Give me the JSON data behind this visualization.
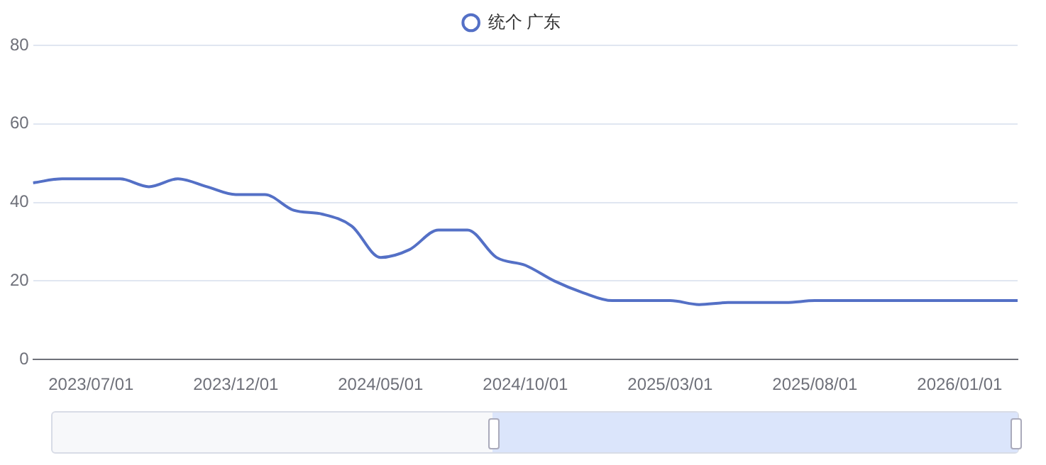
{
  "chart_data": {
    "type": "line",
    "categories": [
      null,
      null,
      "2023/07/01",
      null,
      null,
      null,
      null,
      "2023/12/01",
      null,
      null,
      null,
      null,
      "2024/05/01",
      null,
      null,
      null,
      null,
      "2024/10/01",
      null,
      null,
      null,
      null,
      "2025/03/01",
      null,
      null,
      null,
      null,
      "2025/08/01",
      null,
      null,
      null,
      null,
      "2026/01/01",
      null,
      null
    ],
    "series": [
      {
        "name": "统个 广东",
        "color": "#5470c6",
        "values": [
          45,
          46,
          46,
          46,
          44,
          46,
          44,
          42,
          42,
          38,
          37,
          34,
          26,
          28,
          33,
          33,
          26,
          24,
          20,
          17,
          15,
          15,
          15,
          14,
          14.5,
          14.5,
          14.5,
          15,
          15,
          15,
          15,
          15,
          15,
          15,
          15
        ]
      }
    ],
    "ylim": [
      0,
      80
    ],
    "yticks": [
      0,
      20,
      40,
      60,
      80
    ],
    "grid": "y",
    "legend": "top"
  }
}
